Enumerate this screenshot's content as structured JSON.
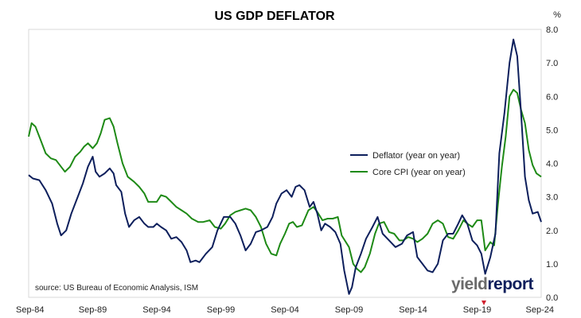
{
  "chart_data": {
    "type": "line",
    "title": "US GDP DEFLATOR",
    "ylabel": "%",
    "ylim": [
      0,
      8
    ],
    "y_ticks": [
      "0.0",
      "1.0",
      "2.0",
      "3.0",
      "4.0",
      "5.0",
      "6.0",
      "7.0",
      "8.0"
    ],
    "x_range": [
      1984.67,
      2024.67
    ],
    "x_ticks": [
      {
        "label": "Sep-84",
        "x": 1984.67
      },
      {
        "label": "Sep-89",
        "x": 1989.67
      },
      {
        "label": "Sep-94",
        "x": 1994.67
      },
      {
        "label": "Sep-99",
        "x": 1999.67
      },
      {
        "label": "Sep-04",
        "x": 2004.67
      },
      {
        "label": "Sep-09",
        "x": 2009.67
      },
      {
        "label": "Sep-14",
        "x": 2014.67
      },
      {
        "label": "Sep-19",
        "x": 2019.67
      },
      {
        "label": "Sep-24",
        "x": 2024.67
      }
    ],
    "grid": false,
    "legend": "center-right",
    "series": [
      {
        "name": "Deflator (year on year)",
        "color": "#0d1f5c",
        "points": [
          [
            1984.67,
            3.65
          ],
          [
            1985.0,
            3.55
          ],
          [
            1985.5,
            3.5
          ],
          [
            1986.0,
            3.2
          ],
          [
            1986.5,
            2.8
          ],
          [
            1986.9,
            2.2
          ],
          [
            1987.2,
            1.85
          ],
          [
            1987.6,
            2.0
          ],
          [
            1988.0,
            2.5
          ],
          [
            1988.5,
            3.0
          ],
          [
            1988.9,
            3.4
          ],
          [
            1989.3,
            3.9
          ],
          [
            1989.67,
            4.2
          ],
          [
            1989.9,
            3.75
          ],
          [
            1990.2,
            3.6
          ],
          [
            1990.6,
            3.7
          ],
          [
            1991.0,
            3.85
          ],
          [
            1991.3,
            3.7
          ],
          [
            1991.5,
            3.35
          ],
          [
            1991.9,
            3.15
          ],
          [
            1992.2,
            2.5
          ],
          [
            1992.5,
            2.1
          ],
          [
            1992.9,
            2.3
          ],
          [
            1993.3,
            2.4
          ],
          [
            1993.7,
            2.2
          ],
          [
            1994.0,
            2.1
          ],
          [
            1994.4,
            2.1
          ],
          [
            1994.67,
            2.2
          ],
          [
            1995.0,
            2.1
          ],
          [
            1995.4,
            2.0
          ],
          [
            1995.8,
            1.75
          ],
          [
            1996.2,
            1.8
          ],
          [
            1996.6,
            1.65
          ],
          [
            1997.0,
            1.4
          ],
          [
            1997.3,
            1.05
          ],
          [
            1997.7,
            1.1
          ],
          [
            1998.0,
            1.05
          ],
          [
            1998.5,
            1.3
          ],
          [
            1999.0,
            1.5
          ],
          [
            1999.4,
            2.0
          ],
          [
            1999.9,
            2.4
          ],
          [
            2000.4,
            2.4
          ],
          [
            2000.8,
            2.2
          ],
          [
            2001.2,
            1.85
          ],
          [
            2001.6,
            1.4
          ],
          [
            2002.0,
            1.6
          ],
          [
            2002.4,
            1.95
          ],
          [
            2002.8,
            2.0
          ],
          [
            2003.3,
            2.1
          ],
          [
            2003.7,
            2.4
          ],
          [
            2004.0,
            2.8
          ],
          [
            2004.4,
            3.1
          ],
          [
            2004.8,
            3.2
          ],
          [
            2005.2,
            3.0
          ],
          [
            2005.5,
            3.3
          ],
          [
            2005.8,
            3.35
          ],
          [
            2006.2,
            3.2
          ],
          [
            2006.6,
            2.7
          ],
          [
            2006.9,
            2.85
          ],
          [
            2007.2,
            2.5
          ],
          [
            2007.5,
            2.0
          ],
          [
            2007.8,
            2.2
          ],
          [
            2008.2,
            2.1
          ],
          [
            2008.6,
            1.95
          ],
          [
            2009.0,
            1.6
          ],
          [
            2009.3,
            0.8
          ],
          [
            2009.67,
            0.1
          ],
          [
            2009.9,
            0.3
          ],
          [
            2010.2,
            0.9
          ],
          [
            2010.6,
            1.3
          ],
          [
            2011.0,
            1.75
          ],
          [
            2011.5,
            2.1
          ],
          [
            2011.9,
            2.4
          ],
          [
            2012.3,
            1.9
          ],
          [
            2012.8,
            1.7
          ],
          [
            2013.3,
            1.5
          ],
          [
            2013.8,
            1.6
          ],
          [
            2014.2,
            1.85
          ],
          [
            2014.67,
            1.95
          ],
          [
            2015.0,
            1.2
          ],
          [
            2015.4,
            1.0
          ],
          [
            2015.8,
            0.8
          ],
          [
            2016.2,
            0.75
          ],
          [
            2016.6,
            1.0
          ],
          [
            2017.0,
            1.7
          ],
          [
            2017.4,
            1.9
          ],
          [
            2017.8,
            1.9
          ],
          [
            2018.2,
            2.2
          ],
          [
            2018.5,
            2.45
          ],
          [
            2018.9,
            2.2
          ],
          [
            2019.3,
            1.7
          ],
          [
            2019.67,
            1.55
          ],
          [
            2020.0,
            1.3
          ],
          [
            2020.3,
            0.7
          ],
          [
            2020.7,
            1.2
          ],
          [
            2021.1,
            1.9
          ],
          [
            2021.4,
            4.3
          ],
          [
            2021.8,
            5.5
          ],
          [
            2022.2,
            7.0
          ],
          [
            2022.5,
            7.7
          ],
          [
            2022.8,
            7.2
          ],
          [
            2023.1,
            5.5
          ],
          [
            2023.4,
            3.6
          ],
          [
            2023.7,
            2.9
          ],
          [
            2024.0,
            2.5
          ],
          [
            2024.4,
            2.55
          ],
          [
            2024.67,
            2.25
          ]
        ]
      },
      {
        "name": "Core CPI (year on year)",
        "color": "#1e8a16",
        "points": [
          [
            1984.67,
            4.8
          ],
          [
            1984.9,
            5.2
          ],
          [
            1985.2,
            5.1
          ],
          [
            1985.6,
            4.7
          ],
          [
            1986.0,
            4.3
          ],
          [
            1986.4,
            4.15
          ],
          [
            1986.8,
            4.1
          ],
          [
            1987.2,
            3.9
          ],
          [
            1987.5,
            3.75
          ],
          [
            1987.9,
            3.9
          ],
          [
            1988.3,
            4.2
          ],
          [
            1988.7,
            4.35
          ],
          [
            1989.0,
            4.5
          ],
          [
            1989.3,
            4.6
          ],
          [
            1989.67,
            4.45
          ],
          [
            1990.0,
            4.6
          ],
          [
            1990.3,
            4.9
          ],
          [
            1990.6,
            5.3
          ],
          [
            1991.0,
            5.35
          ],
          [
            1991.3,
            5.1
          ],
          [
            1991.6,
            4.6
          ],
          [
            1992.0,
            4.0
          ],
          [
            1992.4,
            3.6
          ],
          [
            1992.9,
            3.45
          ],
          [
            1993.3,
            3.3
          ],
          [
            1993.7,
            3.1
          ],
          [
            1994.0,
            2.85
          ],
          [
            1994.67,
            2.85
          ],
          [
            1995.0,
            3.05
          ],
          [
            1995.4,
            3.0
          ],
          [
            1995.8,
            2.85
          ],
          [
            1996.2,
            2.7
          ],
          [
            1996.6,
            2.6
          ],
          [
            1997.0,
            2.5
          ],
          [
            1997.4,
            2.35
          ],
          [
            1997.9,
            2.25
          ],
          [
            1998.3,
            2.25
          ],
          [
            1998.8,
            2.3
          ],
          [
            1999.2,
            2.1
          ],
          [
            1999.67,
            2.05
          ],
          [
            2000.0,
            2.2
          ],
          [
            2000.4,
            2.45
          ],
          [
            2000.8,
            2.55
          ],
          [
            2001.2,
            2.6
          ],
          [
            2001.6,
            2.65
          ],
          [
            2002.0,
            2.6
          ],
          [
            2002.4,
            2.4
          ],
          [
            2002.8,
            2.1
          ],
          [
            2003.2,
            1.6
          ],
          [
            2003.6,
            1.3
          ],
          [
            2004.0,
            1.25
          ],
          [
            2004.3,
            1.6
          ],
          [
            2004.67,
            1.9
          ],
          [
            2005.0,
            2.2
          ],
          [
            2005.3,
            2.25
          ],
          [
            2005.6,
            2.1
          ],
          [
            2006.0,
            2.15
          ],
          [
            2006.5,
            2.6
          ],
          [
            2006.9,
            2.7
          ],
          [
            2007.2,
            2.55
          ],
          [
            2007.6,
            2.3
          ],
          [
            2008.0,
            2.35
          ],
          [
            2008.4,
            2.35
          ],
          [
            2008.8,
            2.4
          ],
          [
            2009.1,
            1.85
          ],
          [
            2009.67,
            1.5
          ],
          [
            2010.0,
            1.0
          ],
          [
            2010.3,
            0.85
          ],
          [
            2010.6,
            0.75
          ],
          [
            2010.9,
            0.9
          ],
          [
            2011.3,
            1.3
          ],
          [
            2011.7,
            1.9
          ],
          [
            2012.0,
            2.2
          ],
          [
            2012.4,
            2.25
          ],
          [
            2012.8,
            1.95
          ],
          [
            2013.2,
            1.9
          ],
          [
            2013.6,
            1.7
          ],
          [
            2013.9,
            1.7
          ],
          [
            2014.3,
            1.8
          ],
          [
            2014.67,
            1.75
          ],
          [
            2015.0,
            1.65
          ],
          [
            2015.4,
            1.75
          ],
          [
            2015.8,
            1.9
          ],
          [
            2016.2,
            2.2
          ],
          [
            2016.6,
            2.3
          ],
          [
            2017.0,
            2.2
          ],
          [
            2017.4,
            1.8
          ],
          [
            2017.8,
            1.75
          ],
          [
            2018.2,
            2.0
          ],
          [
            2018.6,
            2.3
          ],
          [
            2018.9,
            2.2
          ],
          [
            2019.3,
            2.1
          ],
          [
            2019.67,
            2.3
          ],
          [
            2020.0,
            2.3
          ],
          [
            2020.3,
            1.4
          ],
          [
            2020.7,
            1.65
          ],
          [
            2021.0,
            1.55
          ],
          [
            2021.3,
            2.8
          ],
          [
            2021.6,
            3.9
          ],
          [
            2021.9,
            4.8
          ],
          [
            2022.2,
            6.0
          ],
          [
            2022.5,
            6.2
          ],
          [
            2022.8,
            6.1
          ],
          [
            2023.1,
            5.6
          ],
          [
            2023.4,
            5.2
          ],
          [
            2023.7,
            4.4
          ],
          [
            2024.0,
            3.95
          ],
          [
            2024.3,
            3.7
          ],
          [
            2024.67,
            3.6
          ]
        ]
      }
    ],
    "annotations": {
      "source": "source: US Bureau of Economic Analysis, ISM"
    }
  },
  "branding": {
    "logo_prefix": "yield",
    "logo_suffix": "report",
    "logo_prefix_color": "#6b6b6b",
    "logo_suffix_color": "#0d1f5c",
    "marker_color": "#d0202e"
  }
}
